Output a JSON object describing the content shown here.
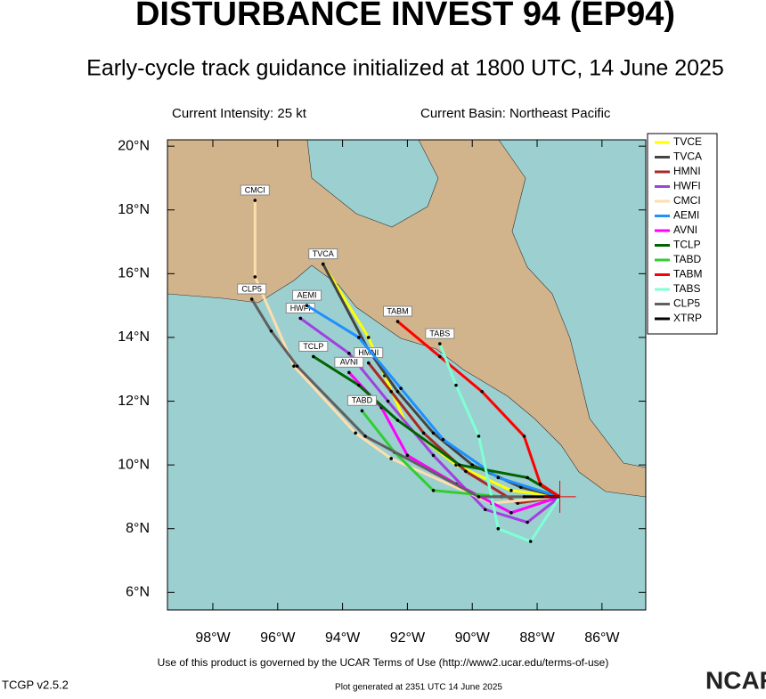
{
  "header": {
    "title": "DISTURBANCE INVEST 94 (EP94)",
    "subtitle": "Early-cycle track guidance initialized at 1800 UTC, 14 June 2025",
    "intensity": "Current Intensity: 25 kt",
    "basin": "Current Basin: Northeast Pacific"
  },
  "map": {
    "xlim": [
      -99.4,
      -84.65
    ],
    "ylim": [
      5.45,
      20.2
    ],
    "xticks": [
      {
        "value": -98,
        "label": "98°W"
      },
      {
        "value": -96,
        "label": "96°W"
      },
      {
        "value": -94,
        "label": "94°W"
      },
      {
        "value": -92,
        "label": "92°W"
      },
      {
        "value": -90,
        "label": "90°W"
      },
      {
        "value": -88,
        "label": "88°W"
      },
      {
        "value": -86,
        "label": "86°W"
      }
    ],
    "yticks": [
      {
        "value": 6,
        "label": "6°N"
      },
      {
        "value": 8,
        "label": "8°N"
      },
      {
        "value": 10,
        "label": "10°N"
      },
      {
        "value": 12,
        "label": "12°N"
      },
      {
        "value": 14,
        "label": "14°N"
      },
      {
        "value": 16,
        "label": "16°N"
      },
      {
        "value": 18,
        "label": "18°N"
      },
      {
        "value": 20,
        "label": "20°N"
      }
    ],
    "center": {
      "lon": -87.3,
      "lat": 9.0
    },
    "series": [
      {
        "name": "TVCE",
        "color": "#ffff00",
        "lon": [
          -87.3,
          -88.8,
          -90.5,
          -92,
          -92.7,
          -93.2,
          -94.6
        ],
        "lat": [
          9.0,
          9.2,
          10.0,
          11.2,
          12.8,
          14.0,
          16.3
        ]
      },
      {
        "name": "TVCA",
        "color": "#444444",
        "lon": [
          -87.3,
          -88.5,
          -90,
          -91.2,
          -92.3,
          -93.2,
          -94.6
        ],
        "lat": [
          9.0,
          9.3,
          10.0,
          11.0,
          12.3,
          13.6,
          16.3
        ]
      },
      {
        "name": "HMNI",
        "color": "#a52a2a",
        "lon": [
          -87.3,
          -88.6,
          -90.2,
          -91.5,
          -92.5,
          -93.2
        ],
        "lat": [
          9.0,
          8.8,
          9.8,
          11.0,
          12.3,
          13.2
        ]
      },
      {
        "name": "HWFI",
        "color": "#a040e0",
        "lon": [
          -87.3,
          -88.3,
          -89.6,
          -91.2,
          -92.6,
          -93.8,
          -95.3
        ],
        "lat": [
          9.0,
          8.2,
          8.6,
          10.3,
          12.0,
          13.5,
          14.6
        ]
      },
      {
        "name": "CMCI",
        "color": "#ffdead",
        "lon": [
          -87.3,
          -89.4,
          -92.5,
          -93.6,
          -95.5,
          -96.7,
          -96.7
        ],
        "lat": [
          9.0,
          8.8,
          10.2,
          11.0,
          13.1,
          15.9,
          18.3
        ]
      },
      {
        "name": "AEMI",
        "color": "#1e90ff",
        "lon": [
          -87.3,
          -89.2,
          -90.9,
          -92.2,
          -93.5,
          -95.1
        ],
        "lat": [
          9.0,
          9.6,
          10.8,
          12.4,
          14.0,
          15.0
        ]
      },
      {
        "name": "AVNI",
        "color": "#ff00ff",
        "lon": [
          -87.3,
          -88.8,
          -90.5,
          -92,
          -92.8,
          -93.8
        ],
        "lat": [
          9.0,
          8.5,
          9.4,
          10.3,
          11.8,
          12.9
        ]
      },
      {
        "name": "TCLP",
        "color": "#006400",
        "lon": [
          -87.3,
          -88.3,
          -90.4,
          -92.3,
          -93.5,
          -94.9
        ],
        "lat": [
          9.0,
          9.6,
          10.0,
          11.4,
          12.5,
          13.4
        ]
      },
      {
        "name": "TABD",
        "color": "#32cd32",
        "lon": [
          -87.3,
          -89.1,
          -91.2,
          -92.4,
          -93.4
        ],
        "lat": [
          9.0,
          9.0,
          9.2,
          10.4,
          11.7
        ]
      },
      {
        "name": "TABM",
        "color": "#ff0000",
        "lon": [
          -87.3,
          -87.9,
          -88.4,
          -89.7,
          -91,
          -92.3
        ],
        "lat": [
          9.0,
          9.4,
          10.9,
          12.3,
          13.4,
          14.5
        ]
      },
      {
        "name": "TABS",
        "color": "#7fffd4",
        "lon": [
          -87.3,
          -88.2,
          -89.2,
          -89.8,
          -90.5,
          -91.0
        ],
        "lat": [
          9.0,
          7.6,
          8.0,
          10.9,
          12.5,
          13.8
        ]
      },
      {
        "name": "CLP5",
        "color": "#606060",
        "lon": [
          -87.3,
          -89.8,
          -93.3,
          -95.4,
          -96.2,
          -96.8
        ],
        "lat": [
          9.0,
          9.0,
          10.9,
          13.1,
          14.2,
          15.2
        ]
      },
      {
        "name": "XTRP",
        "color": "#000000",
        "lon": [
          -87.3,
          -88.4
        ],
        "lat": [
          9.0,
          9.0
        ]
      }
    ]
  },
  "footer": {
    "terms": "Use of this product is governed by the UCAR Terms of Use (http://www2.ucar.edu/terms-of-use)",
    "version": "TCGP v2.5.2",
    "generated": "Plot generated at 2351 UTC  14 June 2025",
    "logo": "NCAR"
  }
}
